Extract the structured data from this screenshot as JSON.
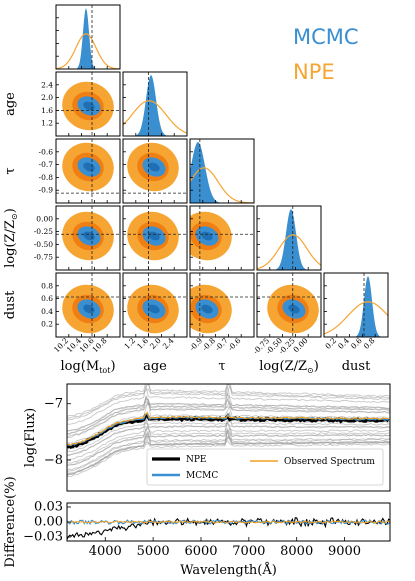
{
  "colors": {
    "mcmc": "#3a8fd0",
    "mcmc_inner": "#1f6fb5",
    "npe": "#f6a532",
    "npe_inner": "#f07f13",
    "observed": "#f0a020",
    "npe_line": "#000000",
    "draws": "#9a9a9a"
  },
  "legend": {
    "mcmc": "MCMC",
    "npe": "NPE"
  },
  "chart_data": [
    {
      "type": "corner",
      "parameters": [
        {
          "key": "mass",
          "label": "log(M",
          "sub": "tot",
          "suffix": ")",
          "range": [
            10.1,
            10.9
          ],
          "ticks": [
            "10.2",
            "10.4",
            "10.6",
            "10.8"
          ],
          "truth": 10.55
        },
        {
          "key": "age",
          "label": "age",
          "range": [
            1.1,
            2.55
          ],
          "ticks": [
            "1.2",
            "1.6",
            "2.0",
            "2.4"
          ],
          "truth": 1.68
        },
        {
          "key": "tau",
          "label": "τ",
          "range": [
            -1.0,
            -0.48
          ],
          "ticks": [
            "-0.9",
            "-0.8",
            "-0.7",
            "-0.6"
          ],
          "truth": -0.92
        },
        {
          "key": "logz",
          "label": "log(Z/Z",
          "sub": "⊙",
          "suffix": ")",
          "range": [
            -0.9,
            0.12
          ],
          "ticks": [
            "-0.75",
            "-0.50",
            "-0.25",
            "0.00"
          ],
          "truth": -0.33
        },
        {
          "key": "dust",
          "label": "dust",
          "range": [
            0.15,
            0.95
          ],
          "ticks": [
            "0.2",
            "0.4",
            "0.6",
            "0.8"
          ],
          "truth": 0.65
        }
      ]
    },
    {
      "type": "line",
      "panel": "spectrum",
      "ylabel": "log(Flux)",
      "xlim": [
        3200,
        9950
      ],
      "ylim": [
        -8.55,
        -6.65
      ],
      "yticks": [
        -7,
        -8
      ],
      "legend": {
        "npe": "NPE",
        "mcmc": "MCMC",
        "observed": "Observed Spectrum"
      }
    },
    {
      "type": "line",
      "panel": "difference",
      "ylabel": "Difference(%)",
      "xlabel": "Wavelength(Å)",
      "xlim": [
        3200,
        9950
      ],
      "ylim": [
        -0.038,
        0.038
      ],
      "yticks": [
        "0.03",
        "0.00",
        "-0.03"
      ],
      "xticks": [
        4000,
        5000,
        6000,
        7000,
        8000,
        9000
      ]
    }
  ]
}
